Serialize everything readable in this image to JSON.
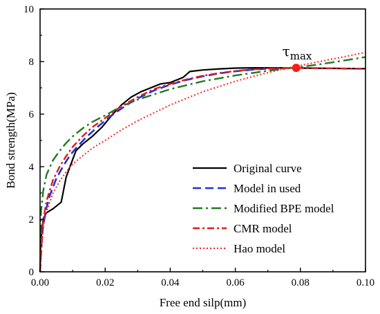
{
  "chart_data": {
    "type": "line",
    "title": "",
    "xlabel": "Free end silp(mm)",
    "ylabel": "Bond strength(MPa)",
    "xlim": [
      0,
      0.1
    ],
    "ylim": [
      0,
      10
    ],
    "xticks": [
      "0.00",
      "0.02",
      "0.04",
      "0.06",
      "0.08",
      "0.10"
    ],
    "yticks": [
      "0",
      "2",
      "4",
      "6",
      "8",
      "10"
    ],
    "xtick_values": [
      0,
      0.02,
      0.04,
      0.06,
      0.08,
      0.1
    ],
    "ytick_values": [
      0,
      2,
      4,
      6,
      8,
      10
    ],
    "grid": false,
    "legend_position": "bottom-right",
    "series": [
      {
        "name": "Original curve",
        "color": "#000000",
        "style": "solid",
        "x": [
          0,
          0.0002,
          0.0005,
          0.001,
          0.0015,
          0.002,
          0.004,
          0.0065,
          0.008,
          0.0095,
          0.011,
          0.013,
          0.016,
          0.019,
          0.022,
          0.025,
          0.028,
          0.031,
          0.034,
          0.037,
          0.04,
          0.042,
          0.044,
          0.046,
          0.05,
          0.055,
          0.06,
          0.065,
          0.07,
          0.075,
          0.08,
          0.09,
          0.1
        ],
        "y": [
          0,
          1.0,
          1.6,
          2.0,
          2.15,
          2.25,
          2.4,
          2.65,
          3.6,
          4.1,
          4.6,
          4.85,
          5.15,
          5.5,
          5.95,
          6.35,
          6.65,
          6.85,
          7.0,
          7.15,
          7.2,
          7.3,
          7.4,
          7.62,
          7.68,
          7.72,
          7.75,
          7.76,
          7.76,
          7.76,
          7.75,
          7.74,
          7.73
        ]
      },
      {
        "name": "Model in used",
        "color": "#1f2fdc",
        "style": "dashed",
        "x": [
          0,
          0.0005,
          0.001,
          0.002,
          0.003,
          0.005,
          0.007,
          0.009,
          0.011,
          0.014,
          0.018,
          0.022,
          0.026,
          0.03,
          0.035,
          0.04,
          0.045,
          0.05,
          0.055,
          0.06,
          0.065,
          0.07,
          0.075,
          0.0787
        ],
        "y": [
          0,
          1.2,
          1.8,
          2.45,
          2.9,
          3.55,
          4.0,
          4.4,
          4.7,
          5.1,
          5.55,
          5.95,
          6.3,
          6.6,
          6.9,
          7.12,
          7.3,
          7.44,
          7.55,
          7.63,
          7.69,
          7.73,
          7.75,
          7.76
        ]
      },
      {
        "name": "Modified BPE model",
        "color": "#1f7a1f",
        "style": "dashdot",
        "x": [
          0,
          0.0003,
          0.001,
          0.002,
          0.004,
          0.006,
          0.008,
          0.01,
          0.013,
          0.016,
          0.02,
          0.025,
          0.03,
          0.035,
          0.04,
          0.045,
          0.05,
          0.055,
          0.06,
          0.065,
          0.07,
          0.075,
          0.08,
          0.085,
          0.09,
          0.095,
          0.1
        ],
        "y": [
          0,
          2.3,
          3.1,
          3.7,
          4.25,
          4.6,
          4.9,
          5.15,
          5.45,
          5.7,
          5.95,
          6.3,
          6.55,
          6.75,
          6.95,
          7.1,
          7.25,
          7.36,
          7.47,
          7.56,
          7.65,
          7.72,
          7.79,
          7.88,
          7.97,
          8.07,
          8.17
        ]
      },
      {
        "name": "CMR model",
        "color": "#e01b1b",
        "style": "dashdotdash",
        "x": [
          0,
          0.001,
          0.002,
          0.004,
          0.006,
          0.008,
          0.01,
          0.013,
          0.016,
          0.02,
          0.025,
          0.03,
          0.035,
          0.04,
          0.045,
          0.05,
          0.055,
          0.06,
          0.065,
          0.07,
          0.075,
          0.08,
          0.085,
          0.09,
          0.095,
          0.1
        ],
        "y": [
          0,
          2.0,
          2.7,
          3.5,
          4.0,
          4.4,
          4.75,
          5.15,
          5.5,
          5.85,
          6.3,
          6.65,
          6.95,
          7.15,
          7.32,
          7.46,
          7.56,
          7.64,
          7.7,
          7.73,
          7.75,
          7.76,
          7.75,
          7.74,
          7.73,
          7.72
        ]
      },
      {
        "name": "Hao model",
        "color": "#ff2020",
        "style": "dotted",
        "x": [
          0,
          0.0005,
          0.001,
          0.002,
          0.004,
          0.006,
          0.008,
          0.01,
          0.013,
          0.016,
          0.02,
          0.025,
          0.03,
          0.035,
          0.04,
          0.045,
          0.05,
          0.055,
          0.06,
          0.065,
          0.07,
          0.075,
          0.08,
          0.085,
          0.09,
          0.095,
          0.1
        ],
        "y": [
          0,
          1.3,
          1.75,
          2.3,
          3.0,
          3.45,
          3.8,
          4.1,
          4.4,
          4.7,
          5.0,
          5.4,
          5.75,
          6.05,
          6.35,
          6.6,
          6.85,
          7.05,
          7.25,
          7.42,
          7.58,
          7.72,
          7.85,
          7.98,
          8.1,
          8.22,
          8.35
        ]
      }
    ],
    "annotations": [
      {
        "label": "τ",
        "subscript": "max",
        "x": 0.0787,
        "y": 7.76,
        "marker_color": "#ff1a1a"
      }
    ]
  }
}
